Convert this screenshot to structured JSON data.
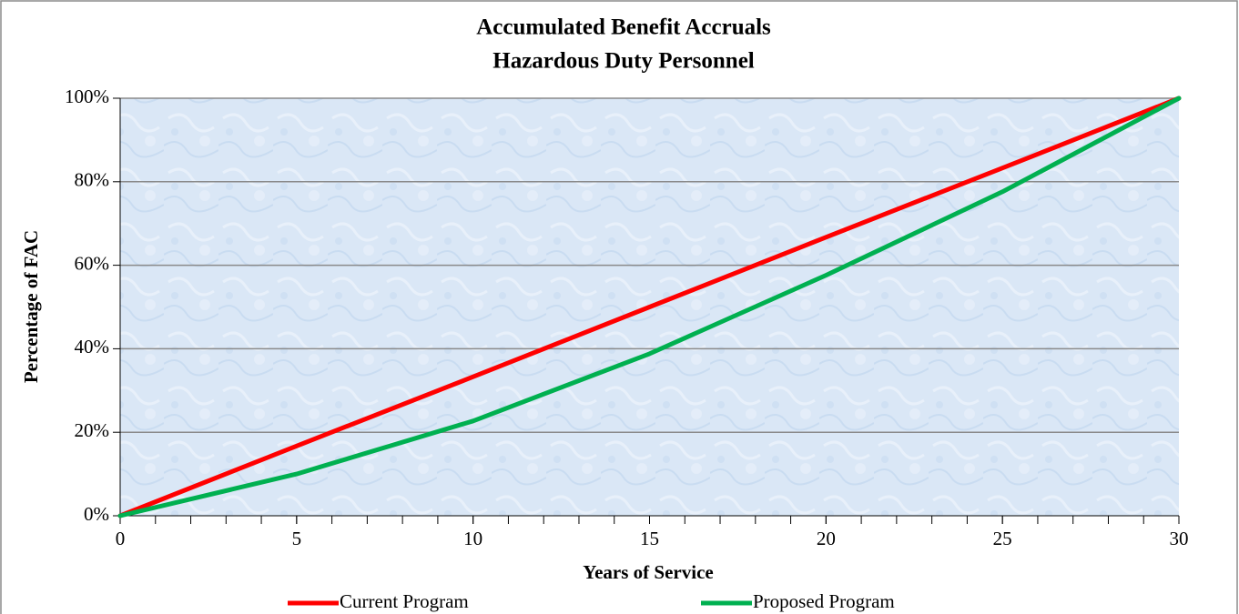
{
  "chart_data": {
    "type": "line",
    "title": "Accumulated Benefit Accruals",
    "subtitle": "Hazardous Duty Personnel",
    "x_label": "Years of Service",
    "y_label": "Percentage of FAC",
    "x": [
      0,
      5,
      10,
      15,
      20,
      25,
      30
    ],
    "series": [
      {
        "name": "Current Program",
        "color": "#ff0000",
        "values": [
          0,
          16.7,
          33.3,
          50,
          66.7,
          83.3,
          100
        ]
      },
      {
        "name": "Proposed Program",
        "color": "#00b050",
        "values": [
          0,
          10,
          22.7,
          38.8,
          57.6,
          77.6,
          100
        ]
      }
    ],
    "xlim": [
      0,
      30
    ],
    "xticks": [
      0,
      5,
      10,
      15,
      20,
      25,
      30
    ],
    "x_minor_ticks": [
      0,
      1,
      2,
      3,
      4,
      5,
      6,
      7,
      8,
      9,
      10,
      11,
      12,
      13,
      14,
      15,
      16,
      17,
      18,
      19,
      20,
      21,
      22,
      23,
      24,
      25,
      26,
      27,
      28,
      29,
      30
    ],
    "ylim": [
      0,
      100
    ],
    "yticks": [
      {
        "value": 0,
        "label": "0%"
      },
      {
        "value": 20,
        "label": "20%"
      },
      {
        "value": 40,
        "label": "40%"
      },
      {
        "value": 60,
        "label": "60%"
      },
      {
        "value": 80,
        "label": "80%"
      },
      {
        "value": 100,
        "label": "100%"
      }
    ],
    "grid": true,
    "legend": "bottom"
  }
}
